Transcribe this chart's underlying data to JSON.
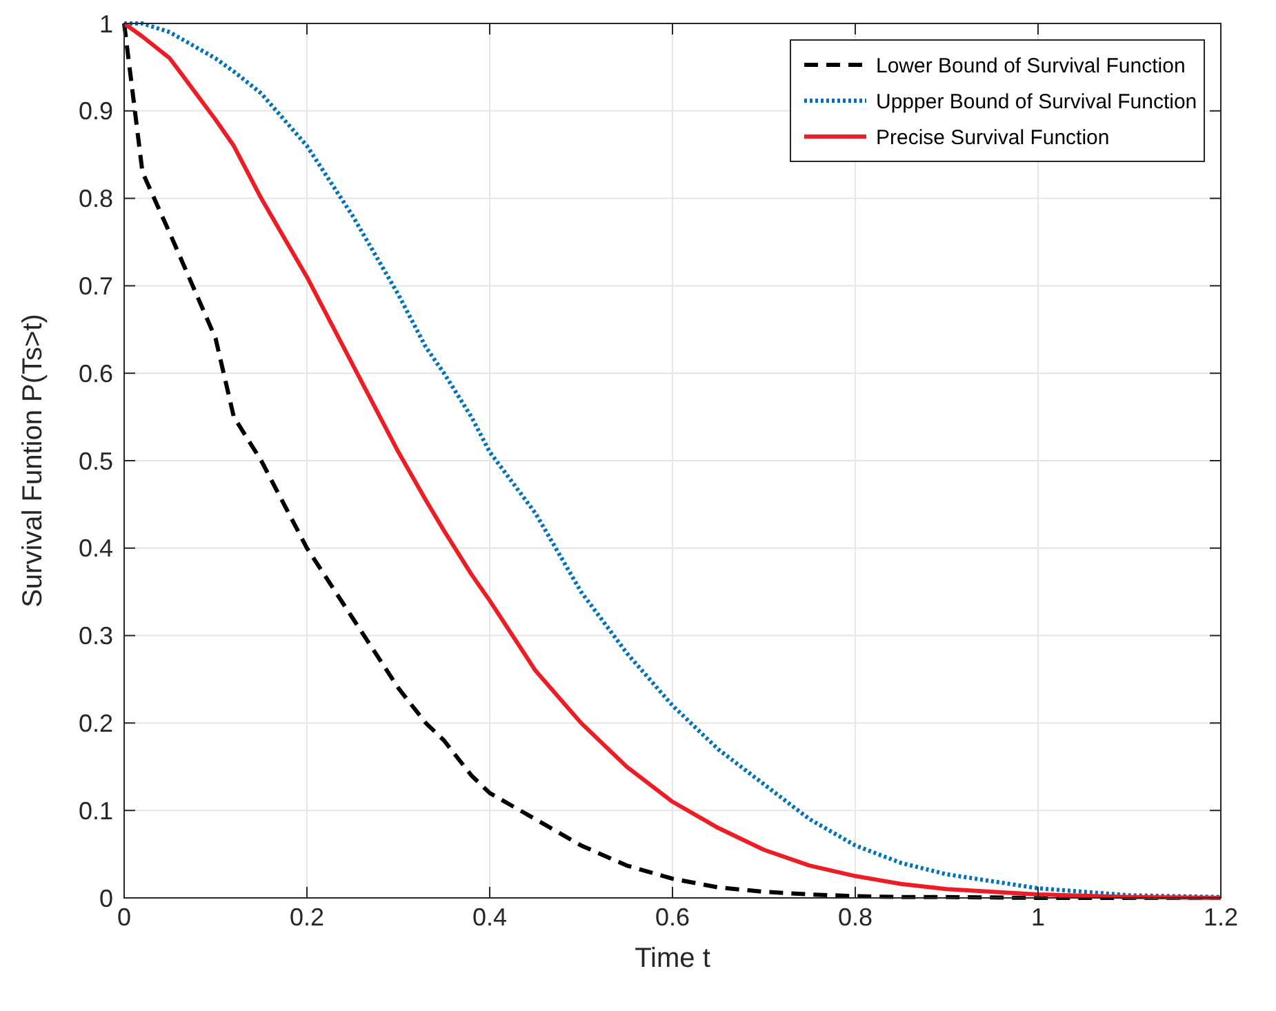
{
  "chart_data": {
    "type": "line",
    "xlabel": "Time t",
    "ylabel": "Survival Funtion P(Ts>t)",
    "xlim": [
      0,
      1.2
    ],
    "ylim": [
      0,
      1
    ],
    "xticks": [
      0,
      0.2,
      0.4,
      0.6,
      0.8,
      1,
      1.2
    ],
    "yticks": [
      0,
      0.1,
      0.2,
      0.3,
      0.4,
      0.5,
      0.6,
      0.7,
      0.8,
      0.9,
      1
    ],
    "grid": true,
    "legend": "top right",
    "x": [
      0,
      0.02,
      0.05,
      0.1,
      0.12,
      0.15,
      0.2,
      0.25,
      0.3,
      0.33,
      0.35,
      0.38,
      0.4,
      0.45,
      0.5,
      0.55,
      0.6,
      0.65,
      0.7,
      0.75,
      0.8,
      0.85,
      0.9,
      1.0,
      1.1,
      1.2
    ],
    "series": [
      {
        "name": "Lower Bound of Survival Function",
        "color": "#000000",
        "line_style": "dashed",
        "values": [
          1,
          0.83,
          0.76,
          0.64,
          0.55,
          0.5,
          0.4,
          0.32,
          0.24,
          0.2,
          0.18,
          0.14,
          0.12,
          0.09,
          0.06,
          0.037,
          0.022,
          0.012,
          0.007,
          0.004,
          0.002,
          0.001,
          0.001,
          0,
          0,
          0
        ]
      },
      {
        "name": "Uppper Bound of Survival Function",
        "color": "#0072bd",
        "line_style": "dotted",
        "values": [
          1,
          1,
          0.99,
          0.96,
          0.945,
          0.92,
          0.86,
          0.78,
          0.69,
          0.63,
          0.6,
          0.55,
          0.51,
          0.44,
          0.35,
          0.28,
          0.22,
          0.17,
          0.13,
          0.09,
          0.06,
          0.04,
          0.027,
          0.011,
          0.003,
          0.001
        ]
      },
      {
        "name": "Precise Survival Function",
        "color": "#ee1c25",
        "line_style": "solid",
        "values": [
          1,
          0.985,
          0.96,
          0.89,
          0.86,
          0.8,
          0.71,
          0.61,
          0.51,
          0.455,
          0.42,
          0.37,
          0.34,
          0.26,
          0.2,
          0.15,
          0.11,
          0.08,
          0.055,
          0.037,
          0.025,
          0.016,
          0.01,
          0.004,
          0.001,
          0
        ]
      }
    ]
  }
}
